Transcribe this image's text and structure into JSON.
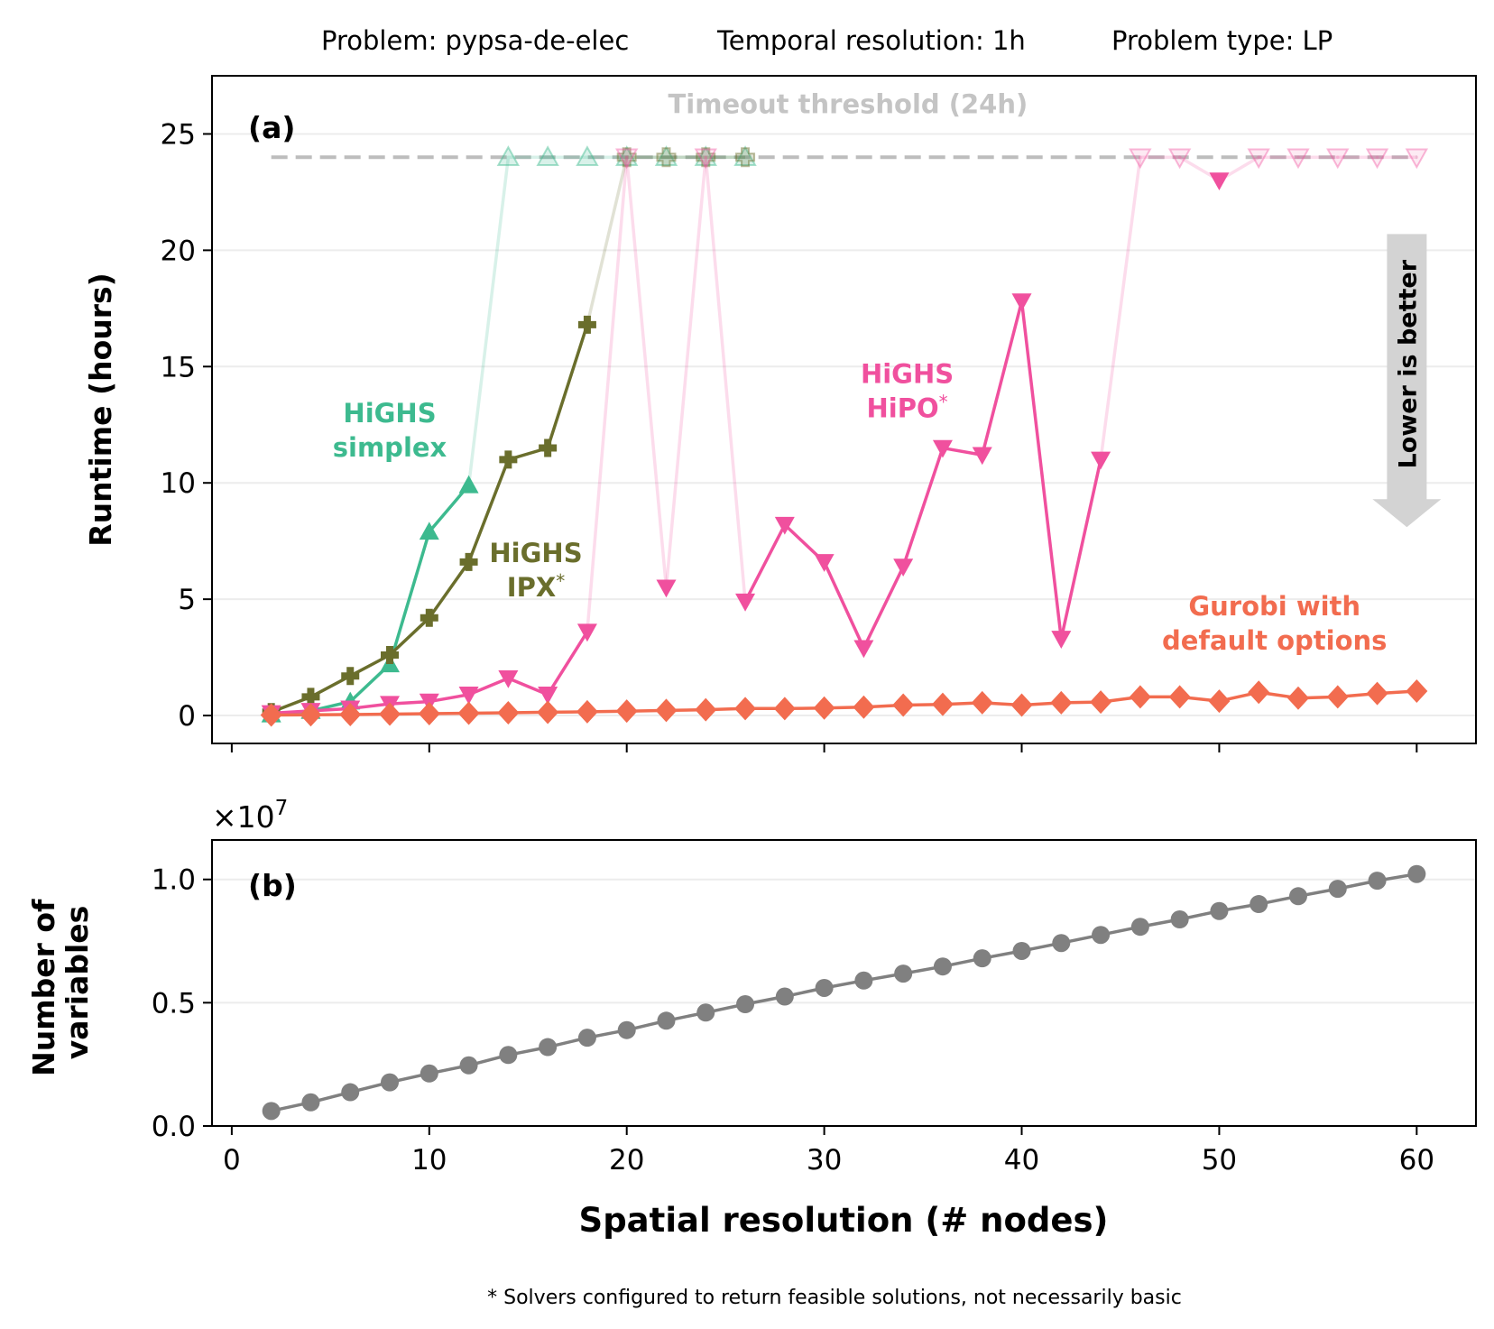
{
  "header": {
    "problem": "Problem: pypsa-de-elec",
    "temporal": "Temporal resolution: 1h",
    "ptype": "Problem type: LP"
  },
  "footnote": "* Solvers configured to return feasible solutions, not necessarily basic",
  "chart_data": [
    {
      "type": "line",
      "panel_label": "(a)",
      "ylabel": "Runtime (hours)",
      "xlim": [
        -1,
        63
      ],
      "ylim": [
        -1.2,
        27.5
      ],
      "yticks": [
        "0",
        "5",
        "10",
        "15",
        "20",
        "25"
      ],
      "ytick_values": [
        0,
        5,
        10,
        15,
        20,
        25
      ],
      "xtick_values": [
        0,
        10,
        20,
        30,
        40,
        50,
        60
      ],
      "grid": "horizontal",
      "timeout": {
        "label": "Timeout threshold (24h)",
        "value": 24
      },
      "arrow_label": "Lower is better",
      "series": [
        {
          "name": "HiGHS simplex",
          "label_lines": [
            "HiGHS",
            "simplex"
          ],
          "color": "#3dba8f",
          "marker": "triangle-up",
          "solved": [
            [
              2,
              0.05
            ],
            [
              4,
              0.2
            ],
            [
              6,
              0.6
            ],
            [
              8,
              2.2
            ],
            [
              10,
              7.9
            ],
            [
              12,
              9.9
            ]
          ],
          "timeout": [
            [
              14,
              24
            ],
            [
              16,
              24
            ],
            [
              18,
              24
            ],
            [
              20,
              24
            ],
            [
              22,
              24
            ],
            [
              24,
              24
            ],
            [
              26,
              24
            ]
          ]
        },
        {
          "name": "HiGHS IPX*",
          "label_lines": [
            "HiGHS",
            "IPX"
          ],
          "label_suffix": "*",
          "color": "#6a6e2c",
          "marker": "plus",
          "solved": [
            [
              2,
              0.15
            ],
            [
              4,
              0.8
            ],
            [
              6,
              1.7
            ],
            [
              8,
              2.6
            ],
            [
              10,
              4.2
            ],
            [
              12,
              6.6
            ],
            [
              14,
              11.0
            ],
            [
              16,
              11.5
            ],
            [
              18,
              16.8
            ]
          ],
          "timeout": [
            [
              20,
              24
            ],
            [
              22,
              24
            ],
            [
              24,
              24
            ],
            [
              26,
              24
            ]
          ]
        },
        {
          "name": "HiGHS HiPO*",
          "label_lines": [
            "HiGHS",
            "HiPO"
          ],
          "label_suffix": "*",
          "color": "#f0509e",
          "marker": "triangle-down",
          "points": [
            [
              2,
              0.1
            ],
            [
              4,
              0.2
            ],
            [
              6,
              0.3
            ],
            [
              8,
              0.5
            ],
            [
              10,
              0.6
            ],
            [
              12,
              0.9
            ],
            [
              14,
              1.6
            ],
            [
              16,
              0.9
            ],
            [
              18,
              3.6
            ],
            [
              20,
              24
            ],
            [
              22,
              5.5
            ],
            [
              24,
              24
            ],
            [
              26,
              4.9
            ],
            [
              28,
              8.2
            ],
            [
              30,
              6.6
            ],
            [
              32,
              2.9
            ],
            [
              34,
              6.4
            ],
            [
              36,
              11.5
            ],
            [
              38,
              11.2
            ],
            [
              40,
              17.8
            ],
            [
              42,
              3.3
            ],
            [
              44,
              11.0
            ],
            [
              46,
              24
            ],
            [
              48,
              24
            ],
            [
              50,
              23.0
            ],
            [
              52,
              24
            ],
            [
              54,
              24
            ],
            [
              56,
              24
            ],
            [
              58,
              24
            ],
            [
              60,
              24
            ]
          ],
          "timeout_x": [
            20,
            24,
            46,
            48,
            52,
            54,
            56,
            58,
            60
          ]
        },
        {
          "name": "Gurobi with default options",
          "label_lines": [
            "Gurobi with",
            "default options"
          ],
          "color": "#f26c4f",
          "marker": "diamond",
          "points": [
            [
              2,
              0.02
            ],
            [
              4,
              0.03
            ],
            [
              6,
              0.04
            ],
            [
              8,
              0.06
            ],
            [
              10,
              0.08
            ],
            [
              12,
              0.1
            ],
            [
              14,
              0.12
            ],
            [
              16,
              0.14
            ],
            [
              18,
              0.16
            ],
            [
              20,
              0.19
            ],
            [
              22,
              0.22
            ],
            [
              24,
              0.25
            ],
            [
              26,
              0.3
            ],
            [
              28,
              0.3
            ],
            [
              30,
              0.32
            ],
            [
              32,
              0.36
            ],
            [
              34,
              0.45
            ],
            [
              36,
              0.48
            ],
            [
              38,
              0.55
            ],
            [
              40,
              0.45
            ],
            [
              42,
              0.55
            ],
            [
              44,
              0.58
            ],
            [
              46,
              0.8
            ],
            [
              48,
              0.8
            ],
            [
              50,
              0.62
            ],
            [
              52,
              1.0
            ],
            [
              54,
              0.75
            ],
            [
              56,
              0.8
            ],
            [
              58,
              0.95
            ],
            [
              60,
              1.05
            ]
          ]
        }
      ]
    },
    {
      "type": "line",
      "panel_label": "(b)",
      "ylabel": "Number of variables",
      "ylabel_lines": [
        "Number of",
        "variables"
      ],
      "scale_label": "×10",
      "scale_exp": "7",
      "xlabel": "Spatial resolution (# nodes)",
      "xlim": [
        -1,
        63
      ],
      "ylim": [
        0,
        1.16
      ],
      "yticks": [
        "0.0",
        "0.5",
        "1.0"
      ],
      "ytick_values": [
        0,
        0.5,
        1.0
      ],
      "xticks": [
        "0",
        "10",
        "20",
        "30",
        "40",
        "50",
        "60"
      ],
      "xtick_values": [
        0,
        10,
        20,
        30,
        40,
        50,
        60
      ],
      "grid": "horizontal",
      "series": [
        {
          "color": "#808080",
          "marker": "circle",
          "points": [
            [
              2,
              0.061
            ],
            [
              4,
              0.096
            ],
            [
              6,
              0.137
            ],
            [
              8,
              0.177
            ],
            [
              10,
              0.213
            ],
            [
              12,
              0.246
            ],
            [
              14,
              0.288
            ],
            [
              16,
              0.32
            ],
            [
              18,
              0.358
            ],
            [
              20,
              0.389
            ],
            [
              22,
              0.427
            ],
            [
              24,
              0.46
            ],
            [
              26,
              0.494
            ],
            [
              28,
              0.525
            ],
            [
              30,
              0.56
            ],
            [
              32,
              0.59
            ],
            [
              34,
              0.618
            ],
            [
              36,
              0.647
            ],
            [
              38,
              0.68
            ],
            [
              40,
              0.71
            ],
            [
              42,
              0.742
            ],
            [
              44,
              0.775
            ],
            [
              46,
              0.808
            ],
            [
              48,
              0.838
            ],
            [
              50,
              0.872
            ],
            [
              52,
              0.9
            ],
            [
              54,
              0.932
            ],
            [
              56,
              0.962
            ],
            [
              58,
              0.995
            ],
            [
              60,
              1.022
            ]
          ]
        }
      ]
    }
  ]
}
